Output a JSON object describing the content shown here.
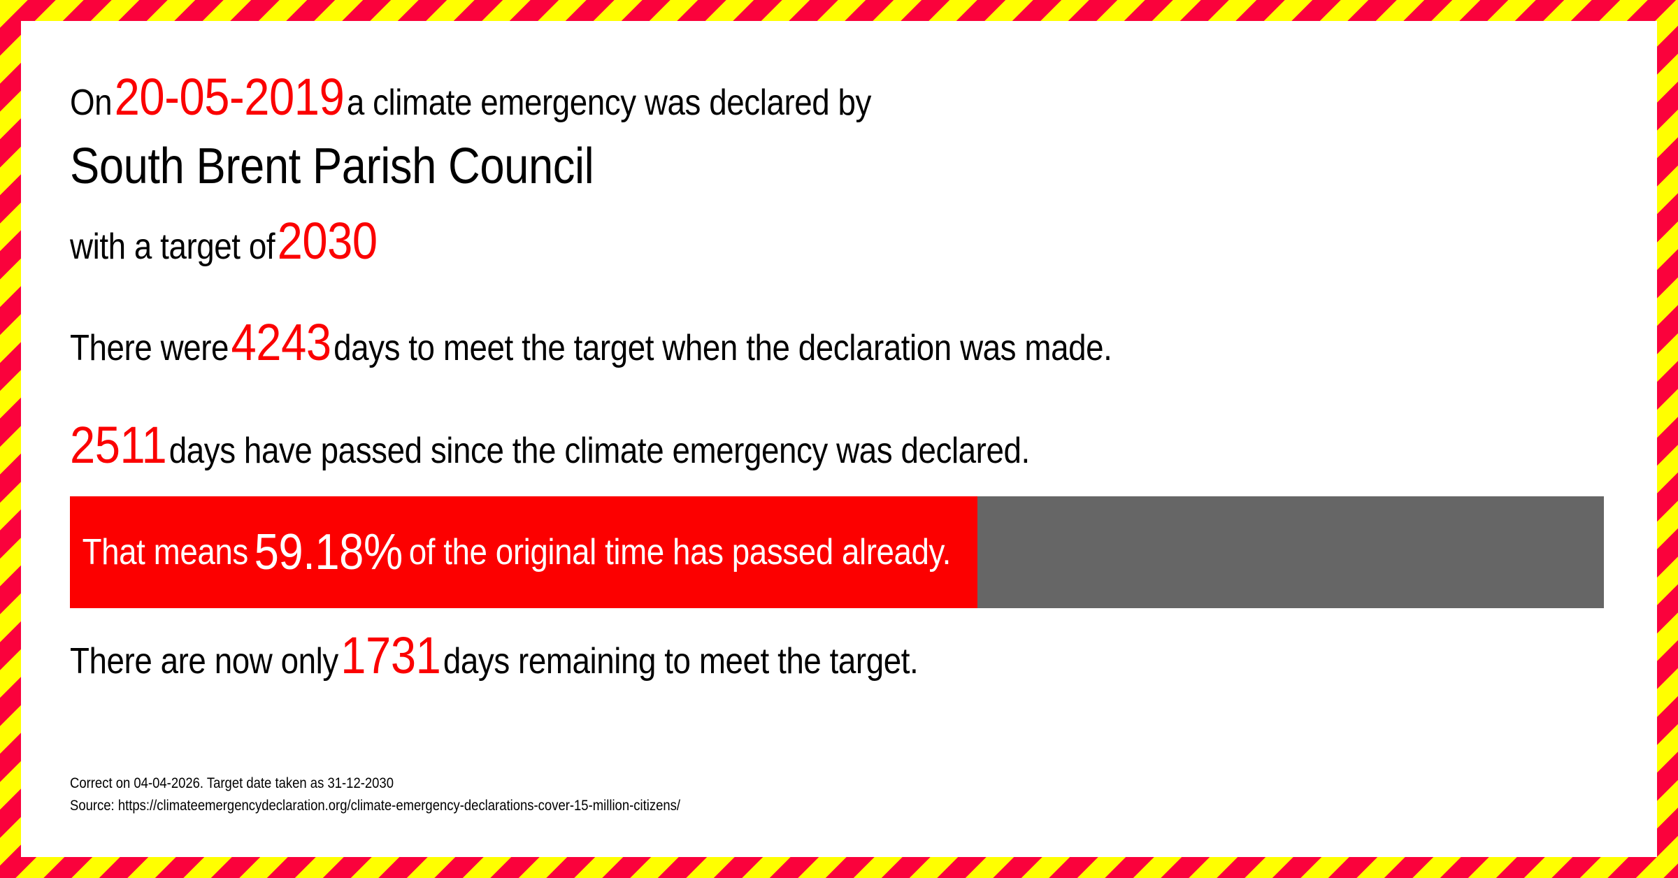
{
  "colors": {
    "tape_yellow": "#ffff00",
    "tape_red": "#fa023c",
    "text_red": "#fb0000",
    "bar_red": "#fc0000",
    "bar_gray": "#666666",
    "text_black": "#000000",
    "card_bg": "#ffffff"
  },
  "header": {
    "prefix": "On",
    "date": "20-05-2019",
    "suffix": "a climate emergency was declared by",
    "council": "South Brent Parish Council",
    "target_prefix": "with a target of",
    "target_year": "2030"
  },
  "totals": {
    "prefix": "There were",
    "days": "4243",
    "suffix": "days to meet the target when the declaration was made."
  },
  "passed": {
    "days": "2511",
    "suffix": "days have passed since the climate emergency was declared."
  },
  "progress": {
    "prefix": "That means",
    "percent": "59.18%",
    "percent_value": 59.18,
    "suffix": "of the original time has passed already."
  },
  "remaining": {
    "prefix": "There are now only",
    "days": "1731",
    "suffix": "days remaining to meet the target."
  },
  "footer": {
    "correct_line": "Correct on 04-04-2026. Target date taken as 31-12-2030",
    "source_line": "Source: https://climateemergencydeclaration.org/climate-emergency-declarations-cover-15-million-citizens/"
  }
}
